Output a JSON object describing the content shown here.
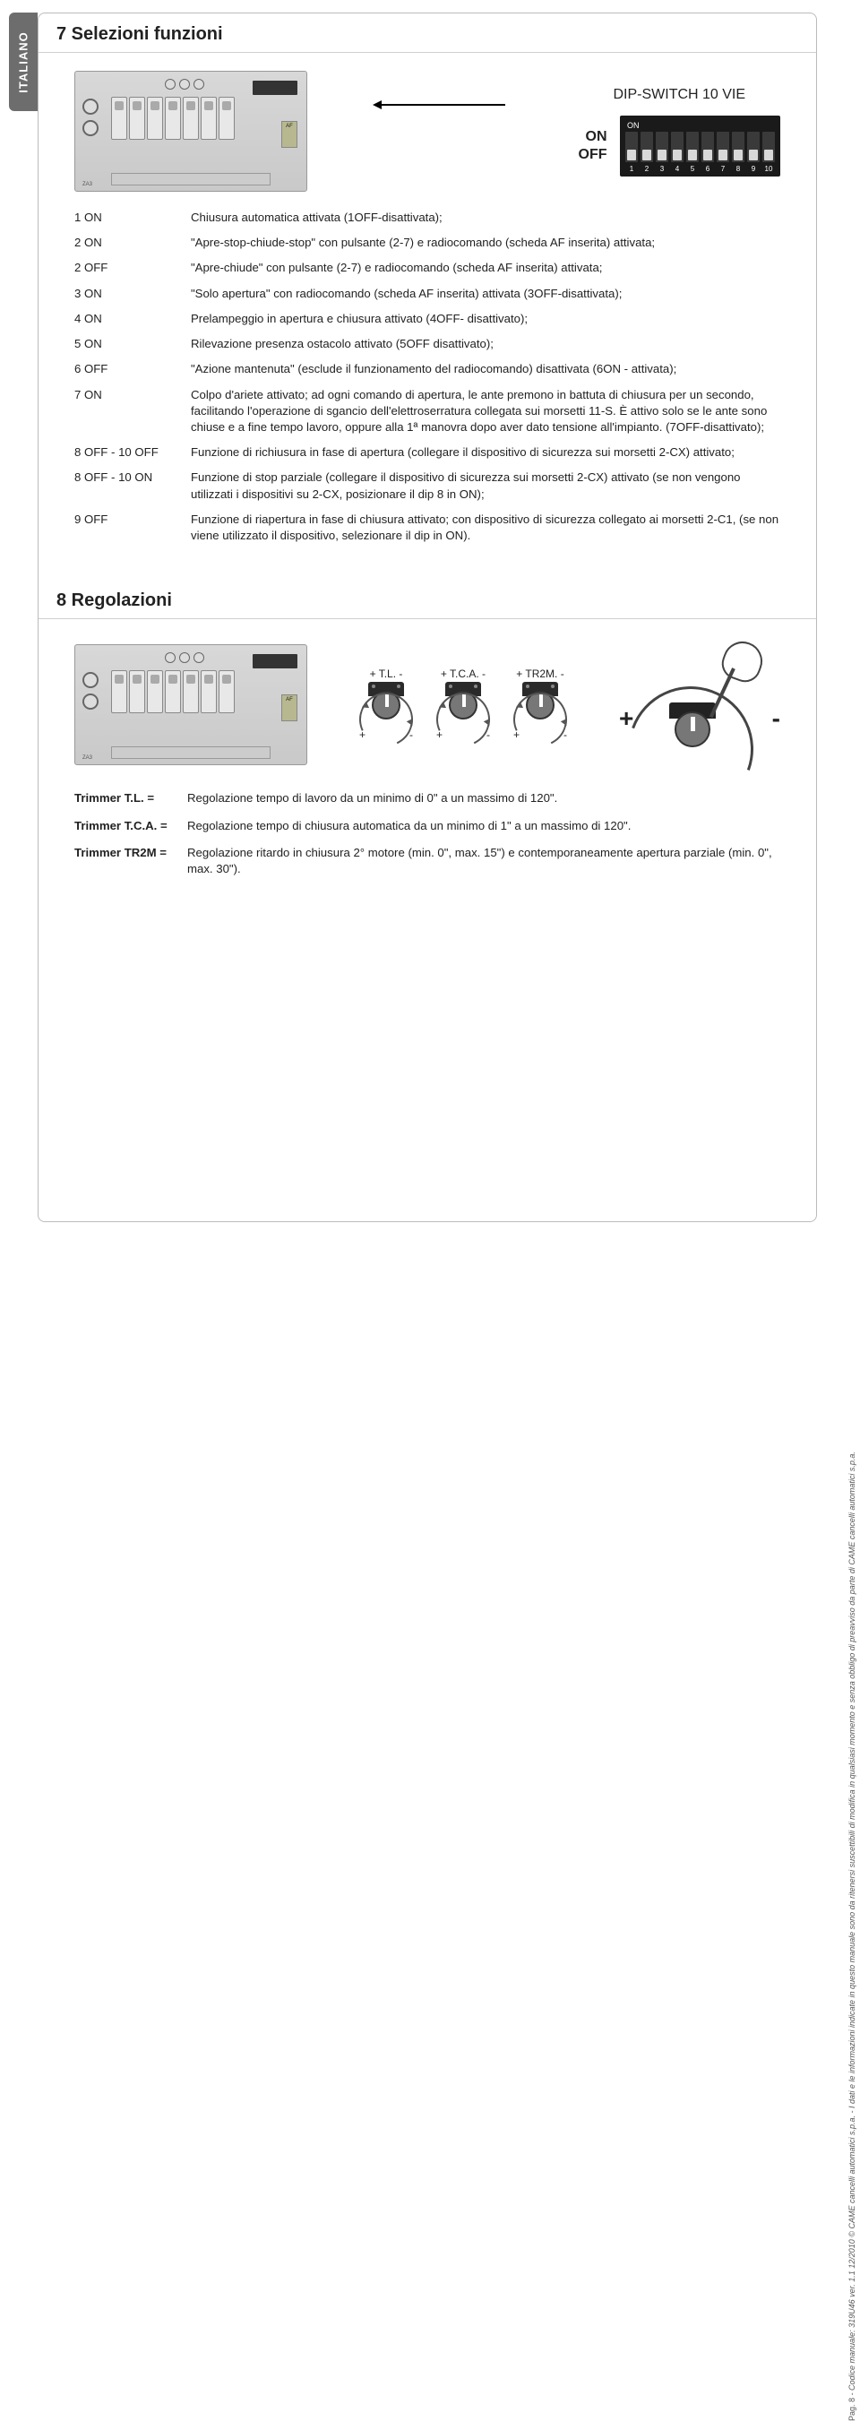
{
  "side_tab": "ITALIANO",
  "section7": {
    "title": "7 Selezioni funzioni",
    "dip_title": "DIP-SWITCH 10 VIE",
    "on_label": "ON",
    "off_label": "OFF",
    "dip_on": "ON",
    "dip_numbers": [
      "1",
      "2",
      "3",
      "4",
      "5",
      "6",
      "7",
      "8",
      "9",
      "10"
    ],
    "board": {
      "af": "AF",
      "za3": "ZA3"
    },
    "rows": [
      {
        "key": "1 ON",
        "val": "Chiusura automatica attivata (1OFF-disattivata);"
      },
      {
        "key": "2 ON",
        "val": "\"Apre-stop-chiude-stop\" con pulsante (2-7) e radiocomando (scheda AF inserita) attivata;"
      },
      {
        "key": "2 OFF",
        "val": "\"Apre-chiude\" con pulsante (2-7) e radiocomando (scheda AF inserita) attivata;"
      },
      {
        "key": "3 ON",
        "val": "\"Solo apertura\" con radiocomando (scheda AF inserita) attivata (3OFF-disattivata);"
      },
      {
        "key": "4 ON",
        "val": "Prelampeggio in apertura e chiusura attivato (4OFF- disattivato);"
      },
      {
        "key": "5 ON",
        "val": "Rilevazione presenza ostacolo attivato (5OFF disattivato);"
      },
      {
        "key": "6 OFF",
        "val": "\"Azione mantenuta\" (esclude il funzionamento del radiocomando) disattivata (6ON - attivata);"
      },
      {
        "key": "7 ON",
        "val": "Colpo d'ariete attivato; ad ogni comando di apertura, le ante premono in battuta di chiusura per un secondo, facilitando l'operazione di sgancio dell'elettroserratura collegata sui morsetti 11-S. È attivo solo se le ante sono chiuse e a fine tempo lavoro, oppure alla 1ª manovra dopo aver dato tensione all'impianto. (7OFF-disattivato);"
      },
      {
        "key": "8 OFF - 10 OFF",
        "val": "Funzione di richiusura in fase di apertura (collegare il dispositivo di sicurezza sui morsetti 2-CX) attivato;"
      },
      {
        "key": "8 OFF - 10 ON",
        "val": "Funzione di stop parziale (collegare il dispositivo di sicurezza sui morsetti 2-CX) attivato (se non vengono utilizzati i dispositivi su 2-CX, posizionare il dip 8 in ON);"
      },
      {
        "key": "9 OFF",
        "val": "Funzione di riapertura in fase di chiusura attivato; con dispositivo di sicurezza collegato ai morsetti 2-C1, (se non viene utilizzato il dispositivo, selezionare il dip in ON)."
      }
    ]
  },
  "section8": {
    "title": "8 Regolazioni",
    "trimmers": [
      {
        "label": "+ T.L. -"
      },
      {
        "label": "+ T.C.A. -"
      },
      {
        "label": "+ TR2M. -"
      }
    ],
    "plus": "+",
    "minus": "-",
    "big_plus": "+",
    "big_minus": "-",
    "rows": [
      {
        "key": "Trimmer T.L. =",
        "val": "Regolazione tempo di lavoro da un minimo di 0\" a un massimo di 120\"."
      },
      {
        "key": "Trimmer T.C.A. =",
        "val": "Regolazione tempo di chiusura automatica da un minimo di 1\" a un massimo di 120\"."
      },
      {
        "key": "Trimmer TR2M =",
        "val": "Regolazione ritardo in chiusura 2° motore (min. 0\", max. 15\") e contemporaneamente apertura parziale (min. 0\", max. 30\")."
      }
    ]
  },
  "footer": {
    "page": "Pag. 8",
    "code": " - Codice manuale: 319U46 ver. 1.1 12/2010 © CAME cancelli automatici s.p.a. - I dati e le informazioni indicate in questo manuale sono da ritenersi suscettibili di modifica in qualsiasi momento e senza obbligo di preavviso da parte di CAME cancelli automatici s.p.a."
  }
}
